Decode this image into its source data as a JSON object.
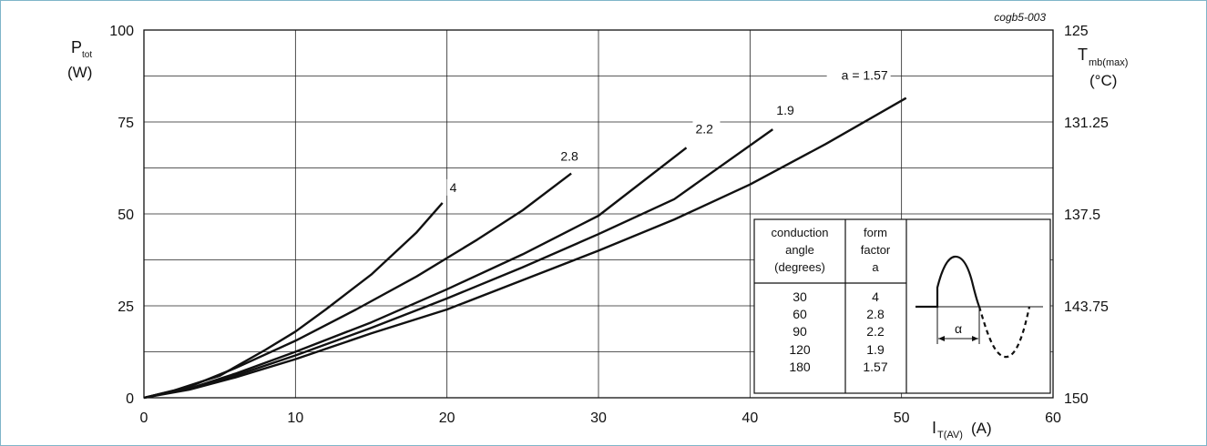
{
  "chart_data": {
    "type": "line",
    "figure_code": "cogb5-003",
    "y_label_main": "P",
    "y_label_sub": "tot",
    "y_unit": "(W)",
    "x_label_main": "I",
    "x_label_sub": "T(AV)",
    "x_unit": "(A)",
    "y2_label_main": "T",
    "y2_label_sub": "mb(max)",
    "y2_unit": "(°C)",
    "xlim": [
      0,
      60
    ],
    "ylim": [
      0,
      100
    ],
    "x_ticks": [
      "0",
      "10",
      "20",
      "30",
      "40",
      "50",
      "60"
    ],
    "y_ticks": [
      "0",
      "25",
      "50",
      "75",
      "100"
    ],
    "y2_ticks": [
      "150",
      "143.75",
      "137.5",
      "131.25",
      "125"
    ],
    "grid": true,
    "series": [
      {
        "name": "4",
        "points": [
          [
            0,
            0
          ],
          [
            2,
            2
          ],
          [
            5,
            6
          ],
          [
            8,
            13
          ],
          [
            10,
            18
          ],
          [
            12,
            24
          ],
          [
            15,
            33.5
          ],
          [
            18,
            45
          ],
          [
            19.7,
            53
          ]
        ]
      },
      {
        "name": "2.8",
        "points": [
          [
            0,
            0
          ],
          [
            3,
            3
          ],
          [
            6,
            8
          ],
          [
            10,
            15.5
          ],
          [
            14,
            24
          ],
          [
            18,
            33
          ],
          [
            22,
            43
          ],
          [
            25,
            51
          ],
          [
            28.2,
            61
          ]
        ]
      },
      {
        "name": "2.2",
        "points": [
          [
            0,
            0
          ],
          [
            3,
            2.5
          ],
          [
            6,
            6.5
          ],
          [
            10,
            12.5
          ],
          [
            15,
            20.5
          ],
          [
            20,
            29.5
          ],
          [
            25,
            39
          ],
          [
            30,
            49.5
          ],
          [
            35.8,
            68
          ]
        ]
      },
      {
        "name": "1.9",
        "points": [
          [
            0,
            0
          ],
          [
            3,
            2.5
          ],
          [
            6,
            6
          ],
          [
            10,
            11.5
          ],
          [
            15,
            19
          ],
          [
            20,
            27
          ],
          [
            25,
            35.5
          ],
          [
            30,
            44.5
          ],
          [
            35,
            54
          ],
          [
            41.5,
            73
          ]
        ]
      },
      {
        "name": "a = 1.57",
        "points": [
          [
            0,
            0
          ],
          [
            3,
            2.2
          ],
          [
            6,
            5.5
          ],
          [
            10,
            10.5
          ],
          [
            15,
            17.5
          ],
          [
            20,
            24
          ],
          [
            25,
            32
          ],
          [
            30,
            40
          ],
          [
            35,
            48.5
          ],
          [
            40,
            58
          ],
          [
            45,
            69
          ],
          [
            50.3,
            81.5
          ]
        ]
      }
    ],
    "table": {
      "headers": [
        [
          "conduction",
          "angle",
          "(degrees)"
        ],
        [
          "form",
          "factor",
          "a"
        ]
      ],
      "conduction_angles": [
        "30",
        "60",
        "90",
        "120",
        "180"
      ],
      "form_factors": [
        "4",
        "2.8",
        "2.2",
        "1.9",
        "1.57"
      ],
      "alpha_symbol": "α"
    }
  }
}
